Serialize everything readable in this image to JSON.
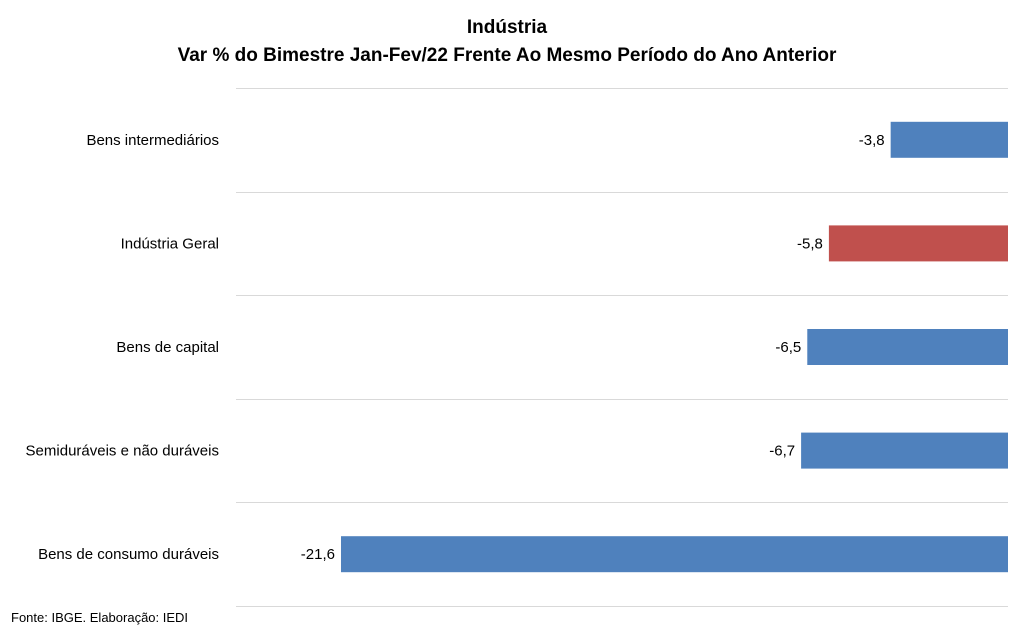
{
  "chart_data": {
    "type": "bar",
    "orientation": "horizontal",
    "title": "Indústria",
    "subtitle": "Var % do Bimestre Jan-Fev/22 Frente Ao Mesmo Período do Ano Anterior",
    "categories": [
      "Bens intermediários",
      "Indústria Geral",
      "Bens de capital",
      "Semiduráveis e não duráveis",
      "Bens de consumo duráveis"
    ],
    "values": [
      -3.8,
      -5.8,
      -6.5,
      -6.7,
      -21.6
    ],
    "value_labels": [
      "-3,8",
      "-5,8",
      "-6,5",
      "-6,7",
      "-21,6"
    ],
    "bar_colors": [
      "#4f81bd",
      "#c0504d",
      "#4f81bd",
      "#4f81bd",
      "#4f81bd"
    ],
    "xlim": [
      -25,
      0
    ],
    "grid": "horizontal category separators",
    "legend": "none"
  },
  "source": "Fonte: IBGE. Elaboração: IEDI"
}
